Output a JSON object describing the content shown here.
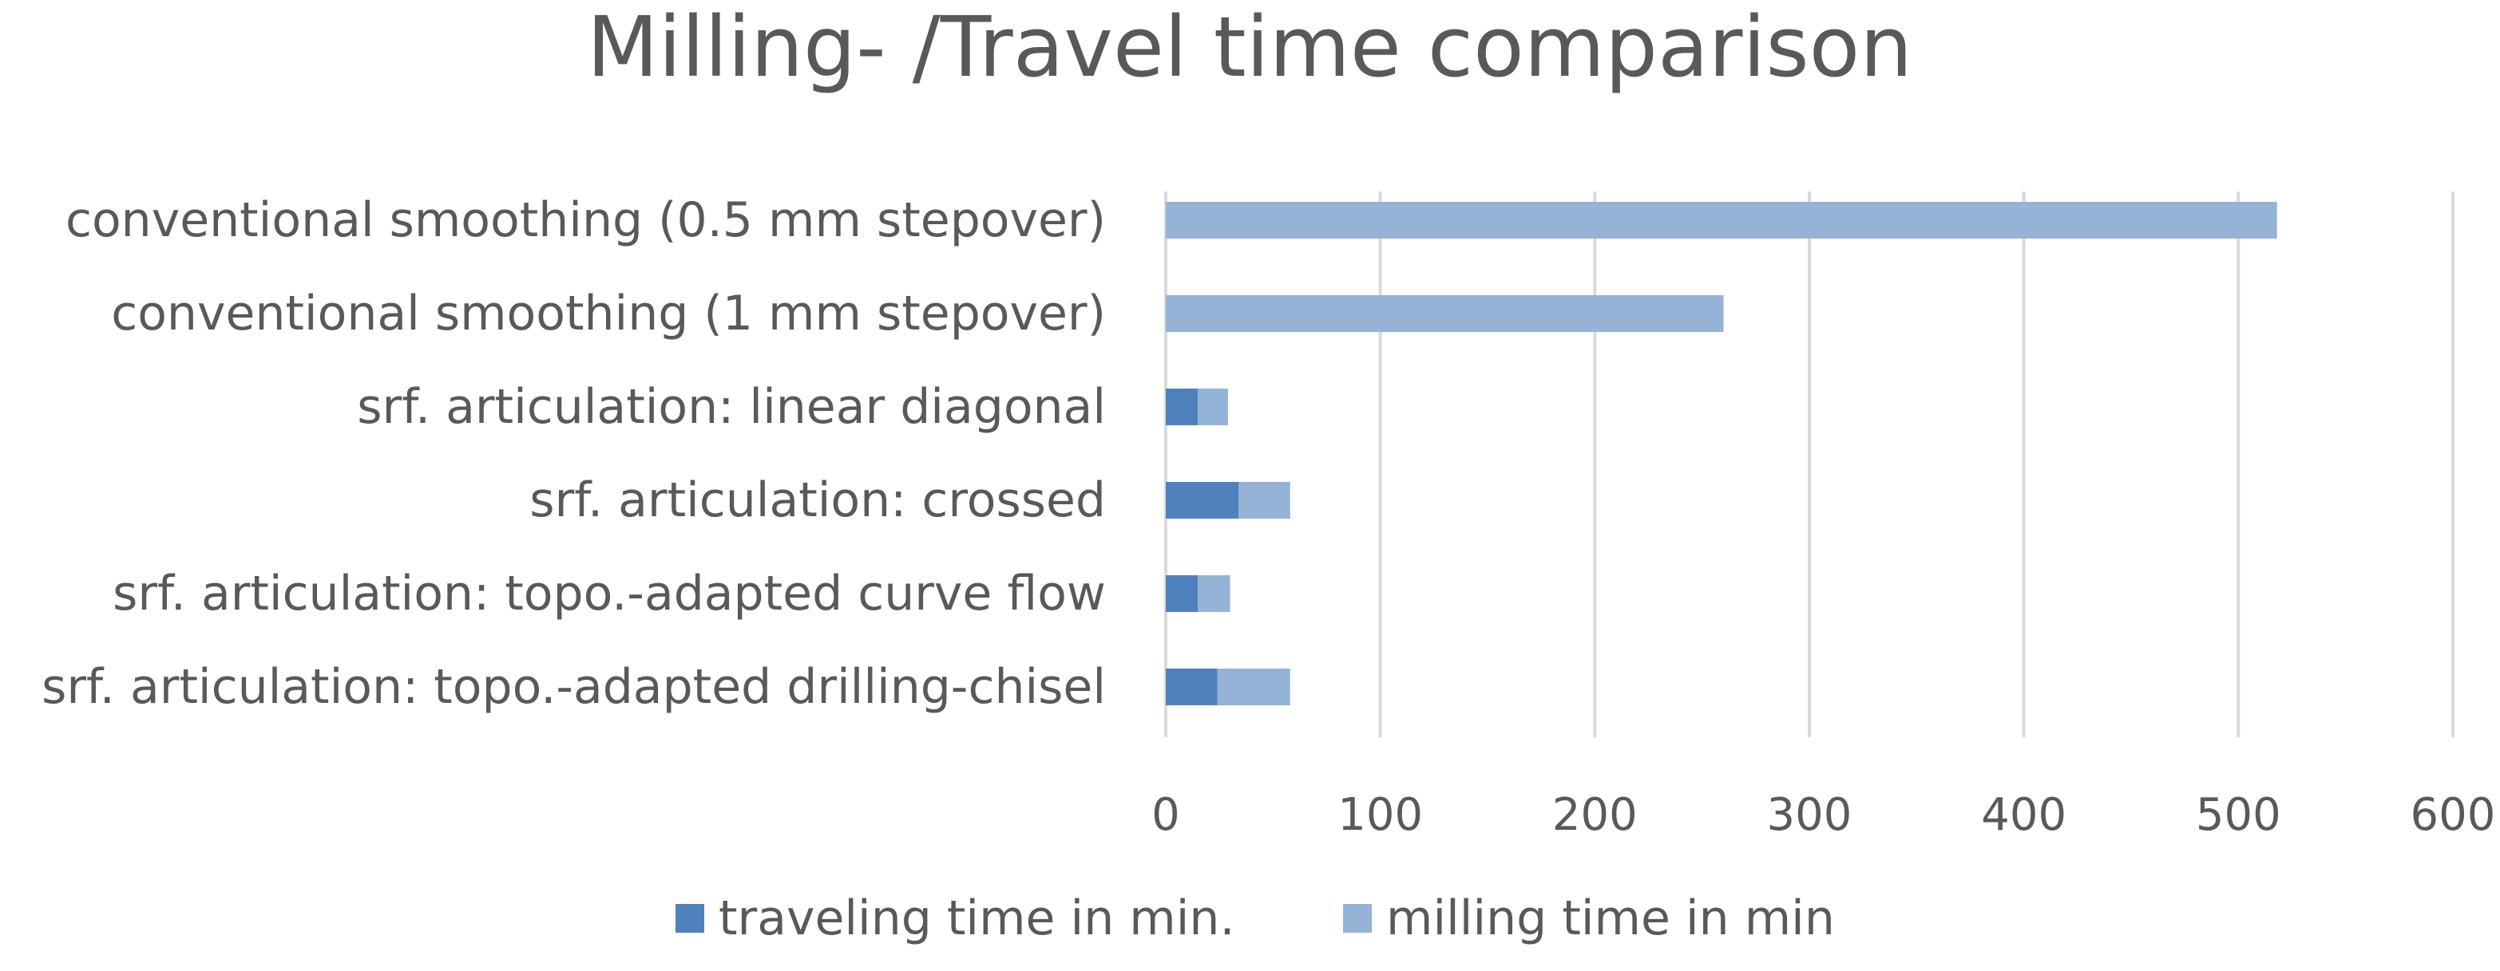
{
  "chart_data": {
    "type": "bar",
    "orientation": "horizontal",
    "stacked": true,
    "title": "Milling- /Travel time comparison",
    "xlabel": "",
    "ylabel": "",
    "xlim": [
      0,
      600
    ],
    "x_ticks": [
      0,
      100,
      200,
      300,
      400,
      500,
      600
    ],
    "grid": true,
    "legend_position": "bottom",
    "categories": [
      "conventional smoothing (0.5 mm stepover)",
      "conventional smoothing (1 mm stepover)",
      "srf. articulation: linear diagonal",
      "srf. articulation: crossed",
      "srf. articulation: topo.-adapted curve flow",
      "srf. articulation: topo.-adapted drilling-chisel"
    ],
    "series": [
      {
        "name": "traveling time in min.",
        "color": "#4f81bd",
        "values": [
          0,
          0,
          15,
          34,
          15,
          24
        ]
      },
      {
        "name": "milling time in min",
        "color": "#95b3d7",
        "values": [
          518,
          260,
          14,
          24,
          15,
          34
        ]
      }
    ]
  }
}
